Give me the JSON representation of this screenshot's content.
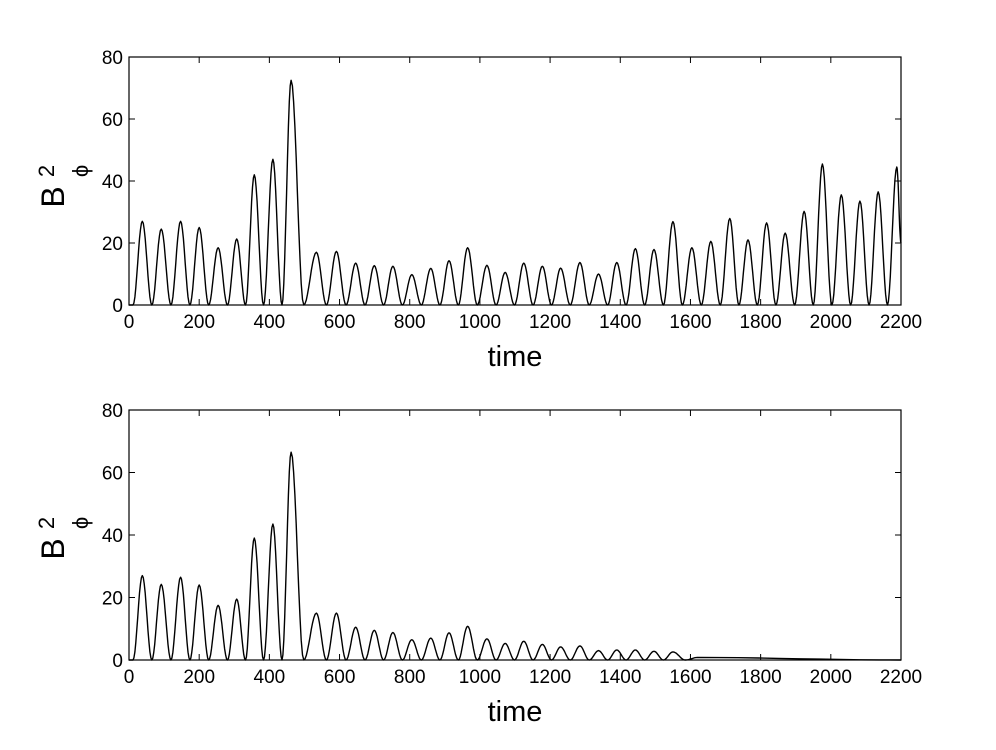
{
  "chart_data": [
    {
      "type": "line",
      "xlabel": "time",
      "ylabel": {
        "base": "B",
        "superscript": "2",
        "subscript": "ϕ"
      },
      "xlim": [
        0,
        2200
      ],
      "ylim": [
        0,
        80
      ],
      "xticks": [
        0,
        200,
        400,
        600,
        800,
        1000,
        1200,
        1400,
        1600,
        1800,
        2000,
        2200
      ],
      "yticks": [
        0,
        20,
        40,
        60,
        80
      ],
      "grid": false,
      "legend": "none",
      "series": [
        {
          "peaks": [
            {
              "x": 38,
              "y": 27
            },
            {
              "x": 92,
              "y": 24.5
            },
            {
              "x": 147,
              "y": 27
            },
            {
              "x": 200,
              "y": 25
            },
            {
              "x": 254,
              "y": 18.5
            },
            {
              "x": 307,
              "y": 21.3
            },
            {
              "x": 357,
              "y": 42
            },
            {
              "x": 410,
              "y": 47
            },
            {
              "x": 462,
              "y": 72.5
            },
            {
              "x": 534,
              "y": 17
            },
            {
              "x": 591,
              "y": 17.3
            },
            {
              "x": 646,
              "y": 13.5
            },
            {
              "x": 699,
              "y": 12.7
            },
            {
              "x": 752,
              "y": 12.5
            },
            {
              "x": 806,
              "y": 9.8
            },
            {
              "x": 860,
              "y": 11.8
            },
            {
              "x": 912,
              "y": 14.3
            },
            {
              "x": 965,
              "y": 18.5
            },
            {
              "x": 1020,
              "y": 12.8
            },
            {
              "x": 1072,
              "y": 10.5
            },
            {
              "x": 1125,
              "y": 13.5
            },
            {
              "x": 1178,
              "y": 12.5
            },
            {
              "x": 1230,
              "y": 11.9
            },
            {
              "x": 1285,
              "y": 13.7
            },
            {
              "x": 1338,
              "y": 10
            },
            {
              "x": 1390,
              "y": 13.7
            },
            {
              "x": 1443,
              "y": 18.2
            },
            {
              "x": 1496,
              "y": 17.9
            },
            {
              "x": 1550,
              "y": 26.9
            },
            {
              "x": 1604,
              "y": 18.5
            },
            {
              "x": 1658,
              "y": 20.5
            },
            {
              "x": 1712,
              "y": 27.9
            },
            {
              "x": 1764,
              "y": 21
            },
            {
              "x": 1817,
              "y": 26.5
            },
            {
              "x": 1870,
              "y": 23.2
            },
            {
              "x": 1924,
              "y": 30.2
            },
            {
              "x": 1976,
              "y": 45.5
            },
            {
              "x": 2030,
              "y": 35.5
            },
            {
              "x": 2083,
              "y": 33.5
            },
            {
              "x": 2135,
              "y": 36.5
            },
            {
              "x": 2188,
              "y": 44.5
            }
          ],
          "end": {
            "x": 2200,
            "y": 20
          }
        }
      ]
    },
    {
      "type": "line",
      "xlabel": "time",
      "ylabel": {
        "base": "B",
        "superscript": "2",
        "subscript": "ϕ"
      },
      "xlim": [
        0,
        2200
      ],
      "ylim": [
        0,
        80
      ],
      "xticks": [
        0,
        200,
        400,
        600,
        800,
        1000,
        1200,
        1400,
        1600,
        1800,
        2000,
        2200
      ],
      "yticks": [
        0,
        20,
        40,
        60,
        80
      ],
      "grid": false,
      "legend": "none",
      "series": [
        {
          "peaks": [
            {
              "x": 38,
              "y": 27
            },
            {
              "x": 92,
              "y": 24.2
            },
            {
              "x": 147,
              "y": 26.5
            },
            {
              "x": 200,
              "y": 24
            },
            {
              "x": 254,
              "y": 17.5
            },
            {
              "x": 307,
              "y": 19.5
            },
            {
              "x": 357,
              "y": 39
            },
            {
              "x": 410,
              "y": 43.5
            },
            {
              "x": 462,
              "y": 66.5
            },
            {
              "x": 534,
              "y": 15
            },
            {
              "x": 591,
              "y": 15
            },
            {
              "x": 646,
              "y": 10.5
            },
            {
              "x": 699,
              "y": 9.5
            },
            {
              "x": 752,
              "y": 8.8
            },
            {
              "x": 806,
              "y": 6.5
            },
            {
              "x": 860,
              "y": 7
            },
            {
              "x": 912,
              "y": 8.7
            },
            {
              "x": 965,
              "y": 10.8
            },
            {
              "x": 1020,
              "y": 6.8
            },
            {
              "x": 1072,
              "y": 5.3
            },
            {
              "x": 1125,
              "y": 6
            },
            {
              "x": 1178,
              "y": 5
            },
            {
              "x": 1230,
              "y": 4.2
            },
            {
              "x": 1285,
              "y": 4.5
            },
            {
              "x": 1338,
              "y": 3
            },
            {
              "x": 1390,
              "y": 3.2
            },
            {
              "x": 1443,
              "y": 3.2
            },
            {
              "x": 1496,
              "y": 2.8
            },
            {
              "x": 1550,
              "y": 2.6
            },
            {
              "x": 1620,
              "y": 0.8
            }
          ],
          "end": {
            "x": 2200,
            "y": 0
          }
        }
      ]
    }
  ]
}
